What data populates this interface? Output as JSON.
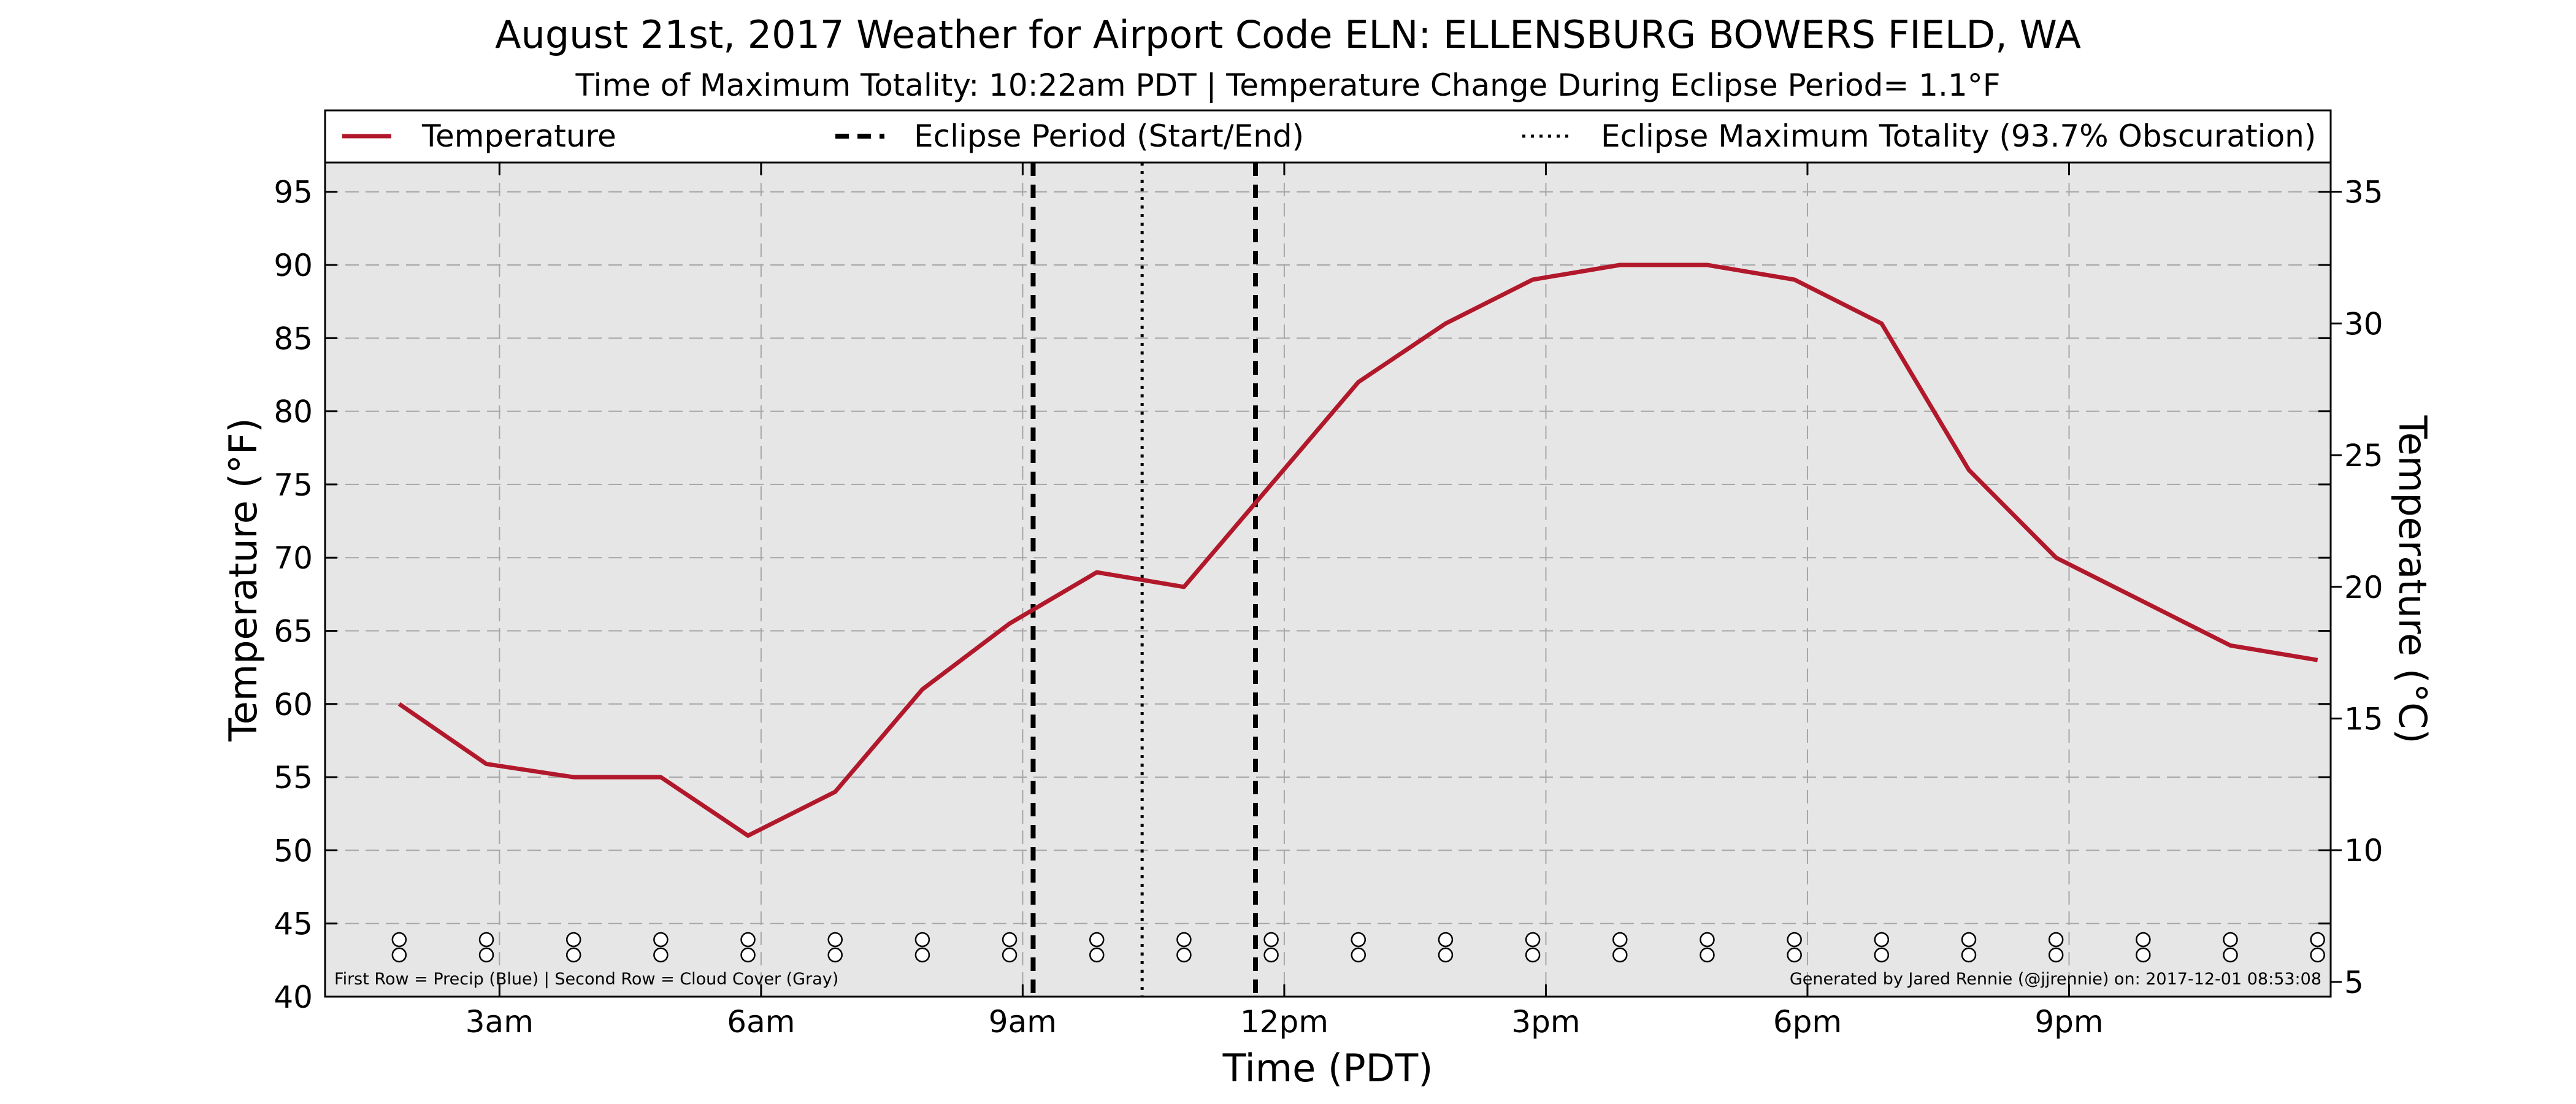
{
  "chart_data": {
    "type": "line",
    "title": "August 21st, 2017 Weather for Airport Code ELN: ELLENSBURG BOWERS FIELD, WA",
    "subtitle": "Time of Maximum Totality: 10:22am PDT | Temperature Change During Eclipse Period= 1.1°F",
    "xlabel": "Time (PDT)",
    "ylabel": "Temperature (°F)",
    "ylabel_right": "Temperature (°C)",
    "x_unit": "hour",
    "xlim": [
      1.0,
      24.0
    ],
    "ylim": [
      40,
      97
    ],
    "y_right_lim": [
      4.44,
      36.11
    ],
    "x_ticks": [
      {
        "x": 3,
        "label": "3am"
      },
      {
        "x": 6,
        "label": "6am"
      },
      {
        "x": 9,
        "label": "9am"
      },
      {
        "x": 12,
        "label": "12pm"
      },
      {
        "x": 15,
        "label": "3pm"
      },
      {
        "x": 18,
        "label": "6pm"
      },
      {
        "x": 21,
        "label": "9pm"
      }
    ],
    "y_ticks": [
      40,
      45,
      50,
      55,
      60,
      65,
      70,
      75,
      80,
      85,
      90,
      95
    ],
    "y_right_ticks": [
      5,
      10,
      15,
      20,
      25,
      30,
      35
    ],
    "grid": true,
    "legend_position": "top",
    "series": [
      {
        "name": "Temperature",
        "color": "#b2182b",
        "x": [
          1.85,
          2.85,
          3.85,
          4.85,
          5.85,
          6.85,
          7.85,
          8.85,
          9.85,
          10.85,
          11.85,
          12.85,
          13.85,
          14.85,
          15.85,
          16.85,
          17.85,
          18.85,
          19.85,
          20.85,
          21.85,
          22.85,
          23.85
        ],
        "y": [
          60,
          55.9,
          55,
          55,
          51,
          54,
          61,
          65.5,
          69,
          68,
          75,
          82,
          86,
          89,
          90,
          90,
          89,
          86,
          76,
          70,
          67,
          64,
          63
        ]
      }
    ],
    "eclipse_start": 9.12,
    "eclipse_end": 11.67,
    "eclipse_max": 10.37,
    "legend": {
      "temperature": "Temperature",
      "eclipse_period": "Eclipse Period (Start/End)",
      "eclipse_max": "Eclipse Maximum Totality (93.7% Obscuration)"
    },
    "marker_rows": {
      "x": [
        1.85,
        2.85,
        3.85,
        4.85,
        5.85,
        6.85,
        7.85,
        8.85,
        9.85,
        10.85,
        11.85,
        12.85,
        13.85,
        14.85,
        15.85,
        16.85,
        17.85,
        18.85,
        19.85,
        20.85,
        21.85,
        22.85,
        23.85
      ],
      "precip_color": "#ffffff",
      "cloud_color": "#ffffff"
    },
    "footnote_left": "First Row = Precip (Blue) | Second Row = Cloud Cover (Gray)",
    "footnote_right": "Generated by Jared Rennie (@jjrennie) on: 2017-12-01 08:53:08",
    "colors": {
      "plot_bg": "#e6e6e6",
      "grid": "#a6a6a6",
      "eclipse_lines": "#000000"
    }
  }
}
